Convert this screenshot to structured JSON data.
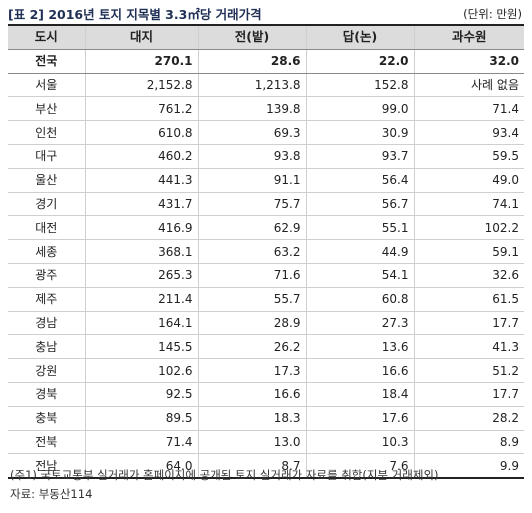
{
  "title": "[표 2] 2016년 토지 지목별 3.3㎡당 거래가격",
  "unit": "(단위: 만원)",
  "table": {
    "headers": [
      "도시",
      "대지",
      "전(밭)",
      "답(논)",
      "과수원"
    ],
    "rows": [
      [
        "전국",
        "270.1",
        "28.6",
        "22.0",
        "32.0"
      ],
      [
        "서울",
        "2,152.8",
        "1,213.8",
        "152.8",
        "사례 없음"
      ],
      [
        "부산",
        "761.2",
        "139.8",
        "99.0",
        "71.4"
      ],
      [
        "인천",
        "610.8",
        "69.3",
        "30.9",
        "93.4"
      ],
      [
        "대구",
        "460.2",
        "93.8",
        "93.7",
        "59.5"
      ],
      [
        "울산",
        "441.3",
        "91.1",
        "56.4",
        "49.0"
      ],
      [
        "경기",
        "431.7",
        "75.7",
        "56.7",
        "74.1"
      ],
      [
        "대전",
        "416.9",
        "62.9",
        "55.1",
        "102.2"
      ],
      [
        "세종",
        "368.1",
        "63.2",
        "44.9",
        "59.1"
      ],
      [
        "광주",
        "265.3",
        "71.6",
        "54.1",
        "32.6"
      ],
      [
        "제주",
        "211.4",
        "55.7",
        "60.8",
        "61.5"
      ],
      [
        "경남",
        "164.1",
        "28.9",
        "27.3",
        "17.7"
      ],
      [
        "충남",
        "145.5",
        "26.2",
        "13.6",
        "41.3"
      ],
      [
        "강원",
        "102.6",
        "17.3",
        "16.6",
        "51.2"
      ],
      [
        "경북",
        "92.5",
        "16.6",
        "18.4",
        "17.7"
      ],
      [
        "충북",
        "89.5",
        "18.3",
        "17.6",
        "28.2"
      ],
      [
        "전북",
        "71.4",
        "13.0",
        "10.3",
        "8.9"
      ],
      [
        "전남",
        "64.0",
        "8.7",
        "7.6",
        "9.9"
      ]
    ]
  },
  "notes": {
    "note1": "(주1) 국토교통부 실거래가 홈페이지에 공개된 토지 실거래가 자료를 취합(지분 거래제외)",
    "source": "자료: 부동산114"
  }
}
